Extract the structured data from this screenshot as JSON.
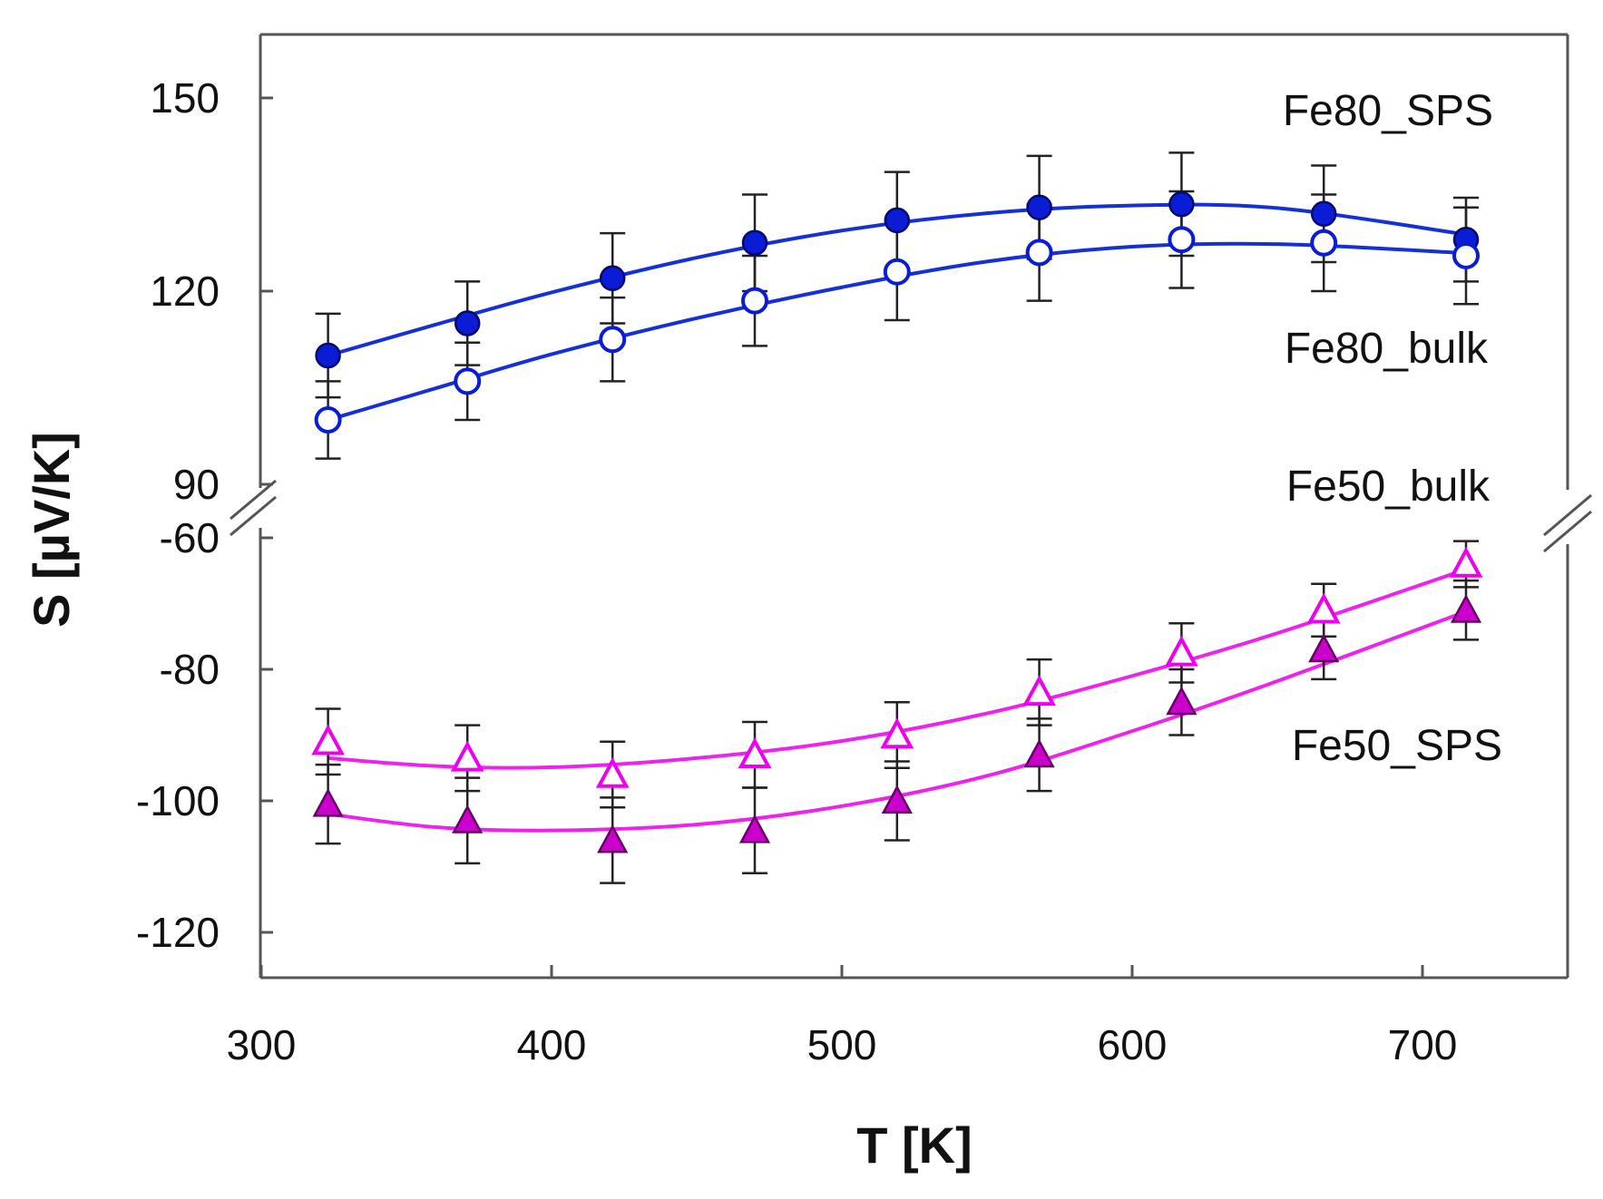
{
  "chart_data": {
    "type": "scatter",
    "title": "",
    "xlabel": "T [K]",
    "ylabel": "S [µV/K]",
    "xlim": [
      300,
      750
    ],
    "x_ticks": [
      300,
      400,
      500,
      600,
      700
    ],
    "y_broken": true,
    "y_upper_segment": {
      "range": [
        90,
        160
      ],
      "ticks": [
        90,
        120,
        150
      ]
    },
    "y_lower_segment": {
      "range": [
        -127,
        -60
      ],
      "ticks": [
        -60,
        -80,
        -100,
        -120
      ]
    },
    "series": [
      {
        "name": "Fe80_SPS",
        "marker": "filled-circle",
        "color": "#0a1cd6",
        "line_color": "#1530d8",
        "segment": "upper",
        "x": [
          323,
          371,
          421,
          470,
          519,
          568,
          617,
          666,
          715
        ],
        "y": [
          110,
          115,
          122,
          127.5,
          131,
          133,
          133.5,
          132,
          128
        ],
        "error": [
          6.5,
          6.5,
          7,
          7.5,
          7.5,
          8,
          8,
          7.5,
          6.5
        ],
        "fit": [
          [
            323,
            110
          ],
          [
            360,
            114.8
          ],
          [
            400,
            119.8
          ],
          [
            450,
            125.2
          ],
          [
            500,
            129.4
          ],
          [
            550,
            132.1
          ],
          [
            600,
            133.3
          ],
          [
            650,
            132.9
          ],
          [
            715,
            128.8
          ]
        ]
      },
      {
        "name": "Fe80_bulk",
        "marker": "open-circle",
        "color": "#0a1cd6",
        "line_color": "#1530d8",
        "segment": "upper",
        "x": [
          323,
          371,
          421,
          470,
          519,
          568,
          617,
          666,
          715
        ],
        "y": [
          100,
          106,
          112.5,
          118.5,
          123,
          126,
          128,
          127.5,
          125.5
        ],
        "error": [
          6,
          6,
          6.5,
          7,
          7.5,
          7.5,
          7.5,
          7.5,
          7.5
        ],
        "fit": [
          [
            323,
            100
          ],
          [
            360,
            104.9
          ],
          [
            400,
            110.2
          ],
          [
            450,
            115.8
          ],
          [
            500,
            120.6
          ],
          [
            550,
            124.6
          ],
          [
            600,
            126.9
          ],
          [
            650,
            127.3
          ],
          [
            715,
            125.9
          ]
        ]
      },
      {
        "name": "Fe50_bulk",
        "marker": "open-triangle",
        "color": "#ee00ee",
        "line_color": "#ee22ee",
        "segment": "lower",
        "x": [
          323,
          371,
          421,
          470,
          519,
          568,
          617,
          666,
          715
        ],
        "y": [
          -91,
          -93.5,
          -96,
          -93,
          -90,
          -83.5,
          -77.5,
          -71,
          -64
        ],
        "error": [
          5,
          5,
          5,
          5,
          5,
          5,
          4.5,
          4,
          3.5
        ],
        "fit": [
          [
            323,
            -93.5
          ],
          [
            360,
            -94.7
          ],
          [
            400,
            -94.9
          ],
          [
            450,
            -93.5
          ],
          [
            500,
            -90.9
          ],
          [
            550,
            -86.7
          ],
          [
            600,
            -81
          ],
          [
            650,
            -74.5
          ],
          [
            715,
            -64.8
          ]
        ]
      },
      {
        "name": "Fe50_SPS",
        "marker": "filled-triangle",
        "color": "#cc00cc",
        "line_color": "#ee22ee",
        "segment": "lower",
        "x": [
          323,
          371,
          421,
          470,
          519,
          568,
          617,
          666,
          715
        ],
        "y": [
          -100.5,
          -103,
          -106,
          -104.5,
          -100,
          -93,
          -85,
          -77,
          -71
        ],
        "error": [
          6,
          6.5,
          6.5,
          6.5,
          6,
          5.5,
          5,
          4.5,
          4.5
        ],
        "fit": [
          [
            323,
            -102
          ],
          [
            360,
            -104
          ],
          [
            400,
            -104.5
          ],
          [
            450,
            -103.6
          ],
          [
            500,
            -100.8
          ],
          [
            550,
            -96.2
          ],
          [
            600,
            -89.4
          ],
          [
            650,
            -81.8
          ],
          [
            715,
            -71.2
          ]
        ]
      }
    ],
    "series_labels": {
      "Fe80_SPS": "Fe80_SPS",
      "Fe80_bulk": "Fe80_bulk",
      "Fe50_bulk": "Fe50_bulk",
      "Fe50_SPS": "Fe50_SPS"
    }
  }
}
